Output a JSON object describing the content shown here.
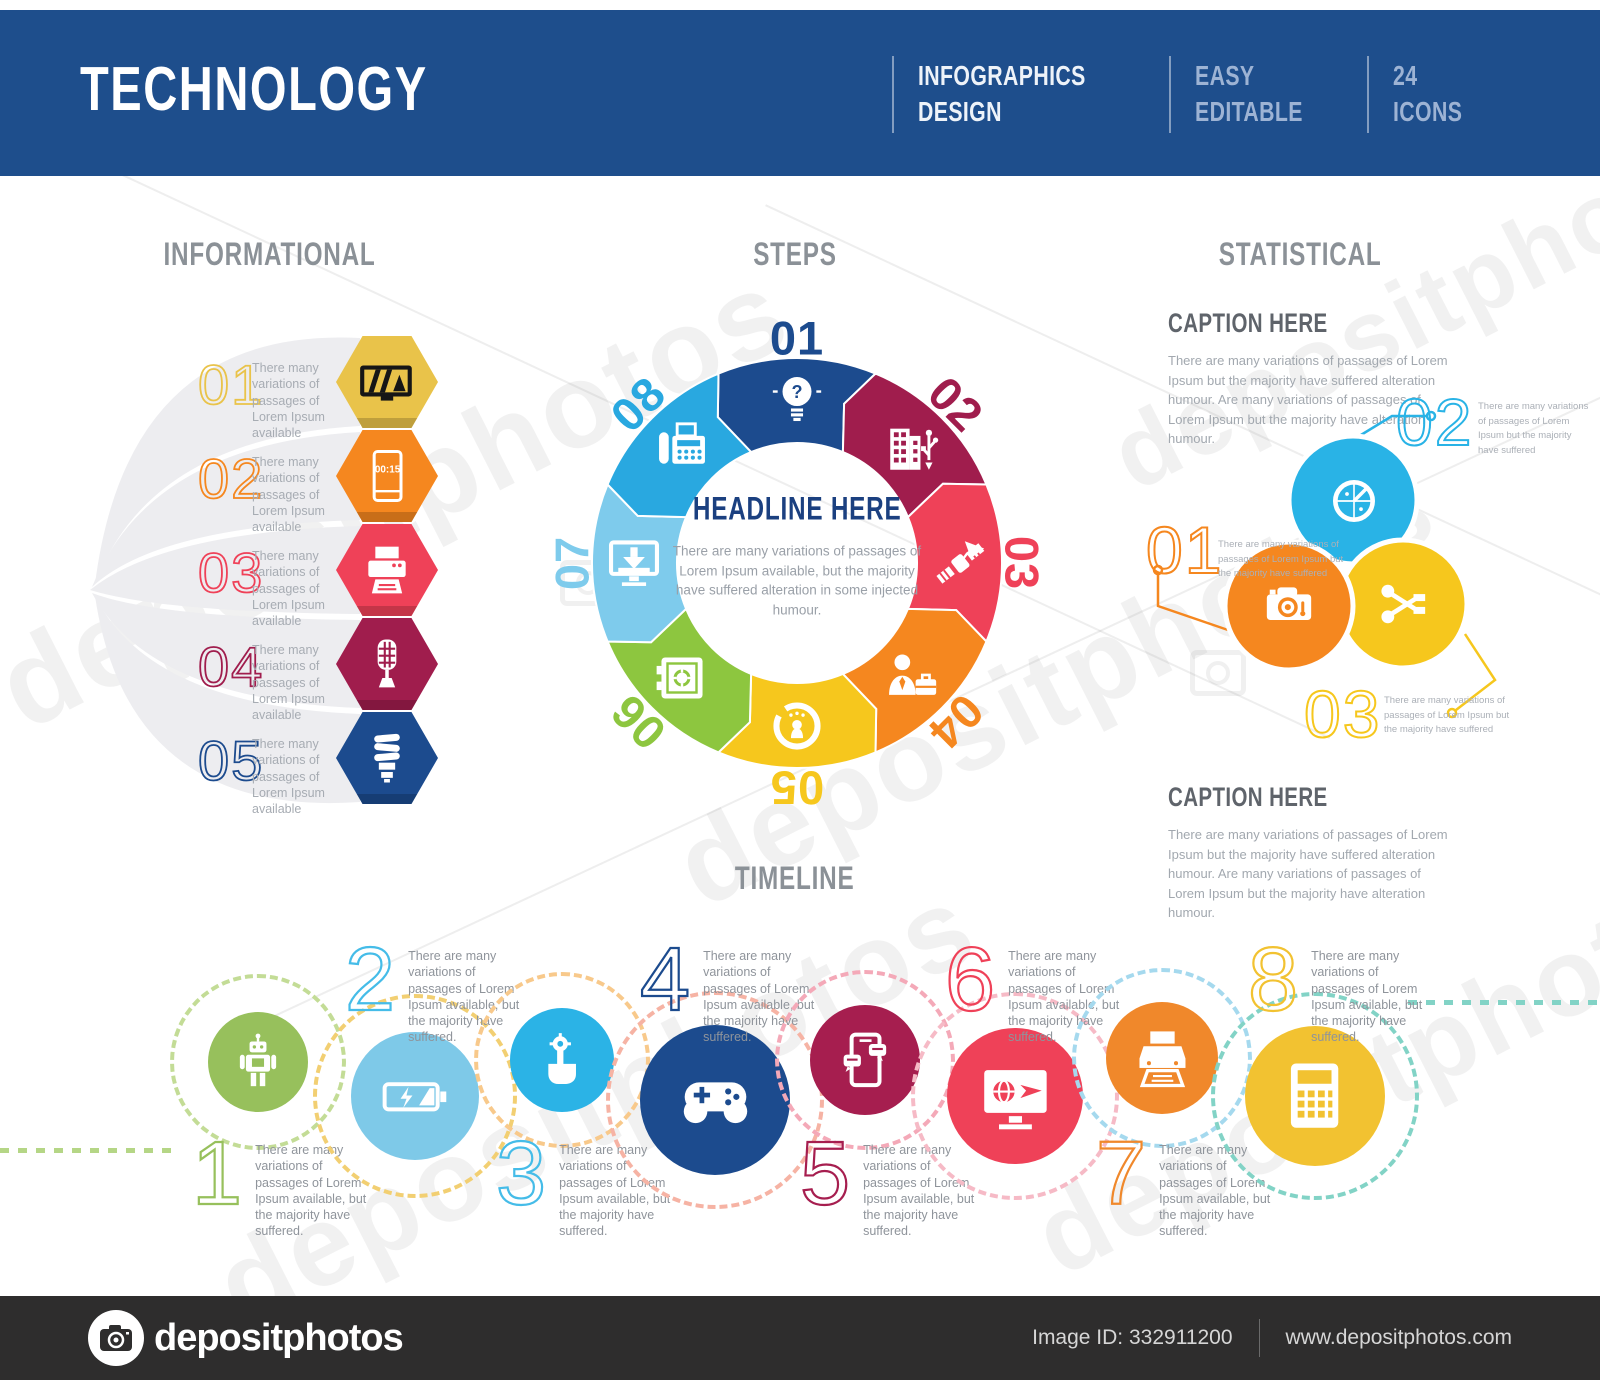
{
  "header": {
    "title": "TECHNOLOGY",
    "badges": [
      {
        "line1": "INFOGRAPHICS",
        "line2": "DESIGN"
      },
      {
        "line1": "EASY",
        "line2": "EDITABLE"
      },
      {
        "line1": "24",
        "line2": "ICONS"
      }
    ],
    "background_color": "#1e4e8c"
  },
  "sections": {
    "informational": {
      "title": "INFORMATIONAL",
      "items": [
        {
          "number": "01",
          "text": "There many variations of passages of Lorem Ipsum available",
          "color": "#e9c34a",
          "icon": "battery-meter"
        },
        {
          "number": "02",
          "text": "There many variations of passages of Lorem Ipsum available",
          "color": "#f5871f",
          "icon": "mobile-timer",
          "timer_value": "00:15"
        },
        {
          "number": "03",
          "text": "There many variations of passages of Lorem Ipsum available",
          "color": "#ef4158",
          "icon": "printer"
        },
        {
          "number": "04",
          "text": "There many variations of passages of Lorem Ipsum available",
          "color": "#a01d4d",
          "icon": "microphone"
        },
        {
          "number": "05",
          "text": "There many variations of passages of Lorem Ipsum available",
          "color": "#1c4b8e",
          "icon": "cfl-bulb"
        }
      ]
    },
    "steps": {
      "title": "STEPS",
      "headline": "HEADLINE HERE",
      "description": "There are many variations of passages of Lorem Ipsum available, but the majority have suffered alteration in some injected humour.",
      "segments": [
        {
          "label": "01",
          "color": "#1c4b8e",
          "icon": "idea-bulb"
        },
        {
          "label": "02",
          "color": "#a01d4d",
          "icon": "building-usb"
        },
        {
          "label": "03",
          "color": "#ef4158",
          "icon": "satellite"
        },
        {
          "label": "04",
          "color": "#f5871f",
          "icon": "businessman"
        },
        {
          "label": "05",
          "color": "#f6c71d",
          "icon": "innovation"
        },
        {
          "label": "06",
          "color": "#8dc63f",
          "icon": "safe-box"
        },
        {
          "label": "07",
          "color": "#7ecbec",
          "icon": "monitor-download"
        },
        {
          "label": "08",
          "color": "#29a8e0",
          "icon": "fax"
        }
      ]
    },
    "statistical": {
      "title": "STATISTICAL",
      "caption_top": {
        "heading": "CAPTION HERE",
        "body": "There are many variations of passages of Lorem Ipsum but the majority have suffered alteration humour. Are many variations of passages of Lorem Ipsum but the majority have alteration humour."
      },
      "caption_bottom": {
        "heading": "CAPTION HERE",
        "body": "There are many variations of passages of Lorem Ipsum but the majority have suffered alteration humour. Are many variations of passages of Lorem Ipsum but the majority have alteration humour."
      },
      "labels": [
        {
          "number": "01",
          "color": "#f5871f",
          "text": "There are many variations of passages of Lorem Ipsum but the majority have suffered"
        },
        {
          "number": "02",
          "color": "#29b3e6",
          "text": "There are many variations of passages of Lorem Ipsum but the majority have suffered"
        },
        {
          "number": "03",
          "color": "#f6c71d",
          "text": "There are many variations of passages of Lorem Ipsum but the majority have suffered"
        }
      ],
      "venn": [
        {
          "icon": "radar",
          "color": "#29b3e6"
        },
        {
          "icon": "photo-camera",
          "color": "#f5871f"
        },
        {
          "icon": "usb-share",
          "color": "#f6c71d"
        }
      ]
    },
    "timeline": {
      "title": "TIMELINE",
      "items": [
        {
          "number": "1",
          "text": "There are many variations of passages of Lorem Ipsum available, but the majority have suffered.",
          "circle_color": "#97c05c",
          "number_color": "#97c05c",
          "ring_color": "#c3dc96",
          "icon": "robot"
        },
        {
          "number": "2",
          "text": "There are many variations of passages of Lorem Ipsum available, but the majority have suffered.",
          "circle_color": "#7ec9e8",
          "number_color": "#45bce8",
          "ring_color": "#f2cf72",
          "icon": "battery-charging"
        },
        {
          "number": "3",
          "text": "There are many variations of passages of Lorem Ipsum available, but the majority have suffered.",
          "circle_color": "#2bb3e6",
          "number_color": "#45bce8",
          "ring_color": "#f8c98b",
          "icon": "touch-gear"
        },
        {
          "number": "4",
          "text": "There are many variations of passages of Lorem Ipsum available, but the majority have suffered.",
          "circle_color": "#1c4b8e",
          "number_color": "#1c4b8e",
          "ring_color": "#f6b3a4",
          "icon": "gamepad"
        },
        {
          "number": "5",
          "text": "There are many variations of passages of Lorem Ipsum available, but the majority have suffered.",
          "circle_color": "#a61e4f",
          "number_color": "#a61e4f",
          "ring_color": "#f4a9b8",
          "icon": "smartphone-chat"
        },
        {
          "number": "6",
          "text": "There are many variations of passages of Lorem Ipsum available, but the majority have suffered.",
          "circle_color": "#ef4158",
          "number_color": "#ef4158",
          "ring_color": "#f6bac6",
          "icon": "monitor-travel"
        },
        {
          "number": "7",
          "text": "There are many variations of passages of Lorem Ipsum available, but the majority have suffered.",
          "circle_color": "#f0882b",
          "number_color": "#f0882b",
          "ring_color": "#a5d9ee",
          "icon": "printer"
        },
        {
          "number": "8",
          "text": "There are many variations of passages of Lorem Ipsum available, but the majority have suffered.",
          "circle_color": "#f2c231",
          "number_color": "#f2c231",
          "ring_color": "#82d3c6",
          "icon": "calculator"
        }
      ]
    }
  },
  "footer": {
    "brand": "depositphotos",
    "image_id": "Image ID: 332911200",
    "url": "www.depositphotos.com"
  },
  "watermark": {
    "text": "depositphotos"
  }
}
